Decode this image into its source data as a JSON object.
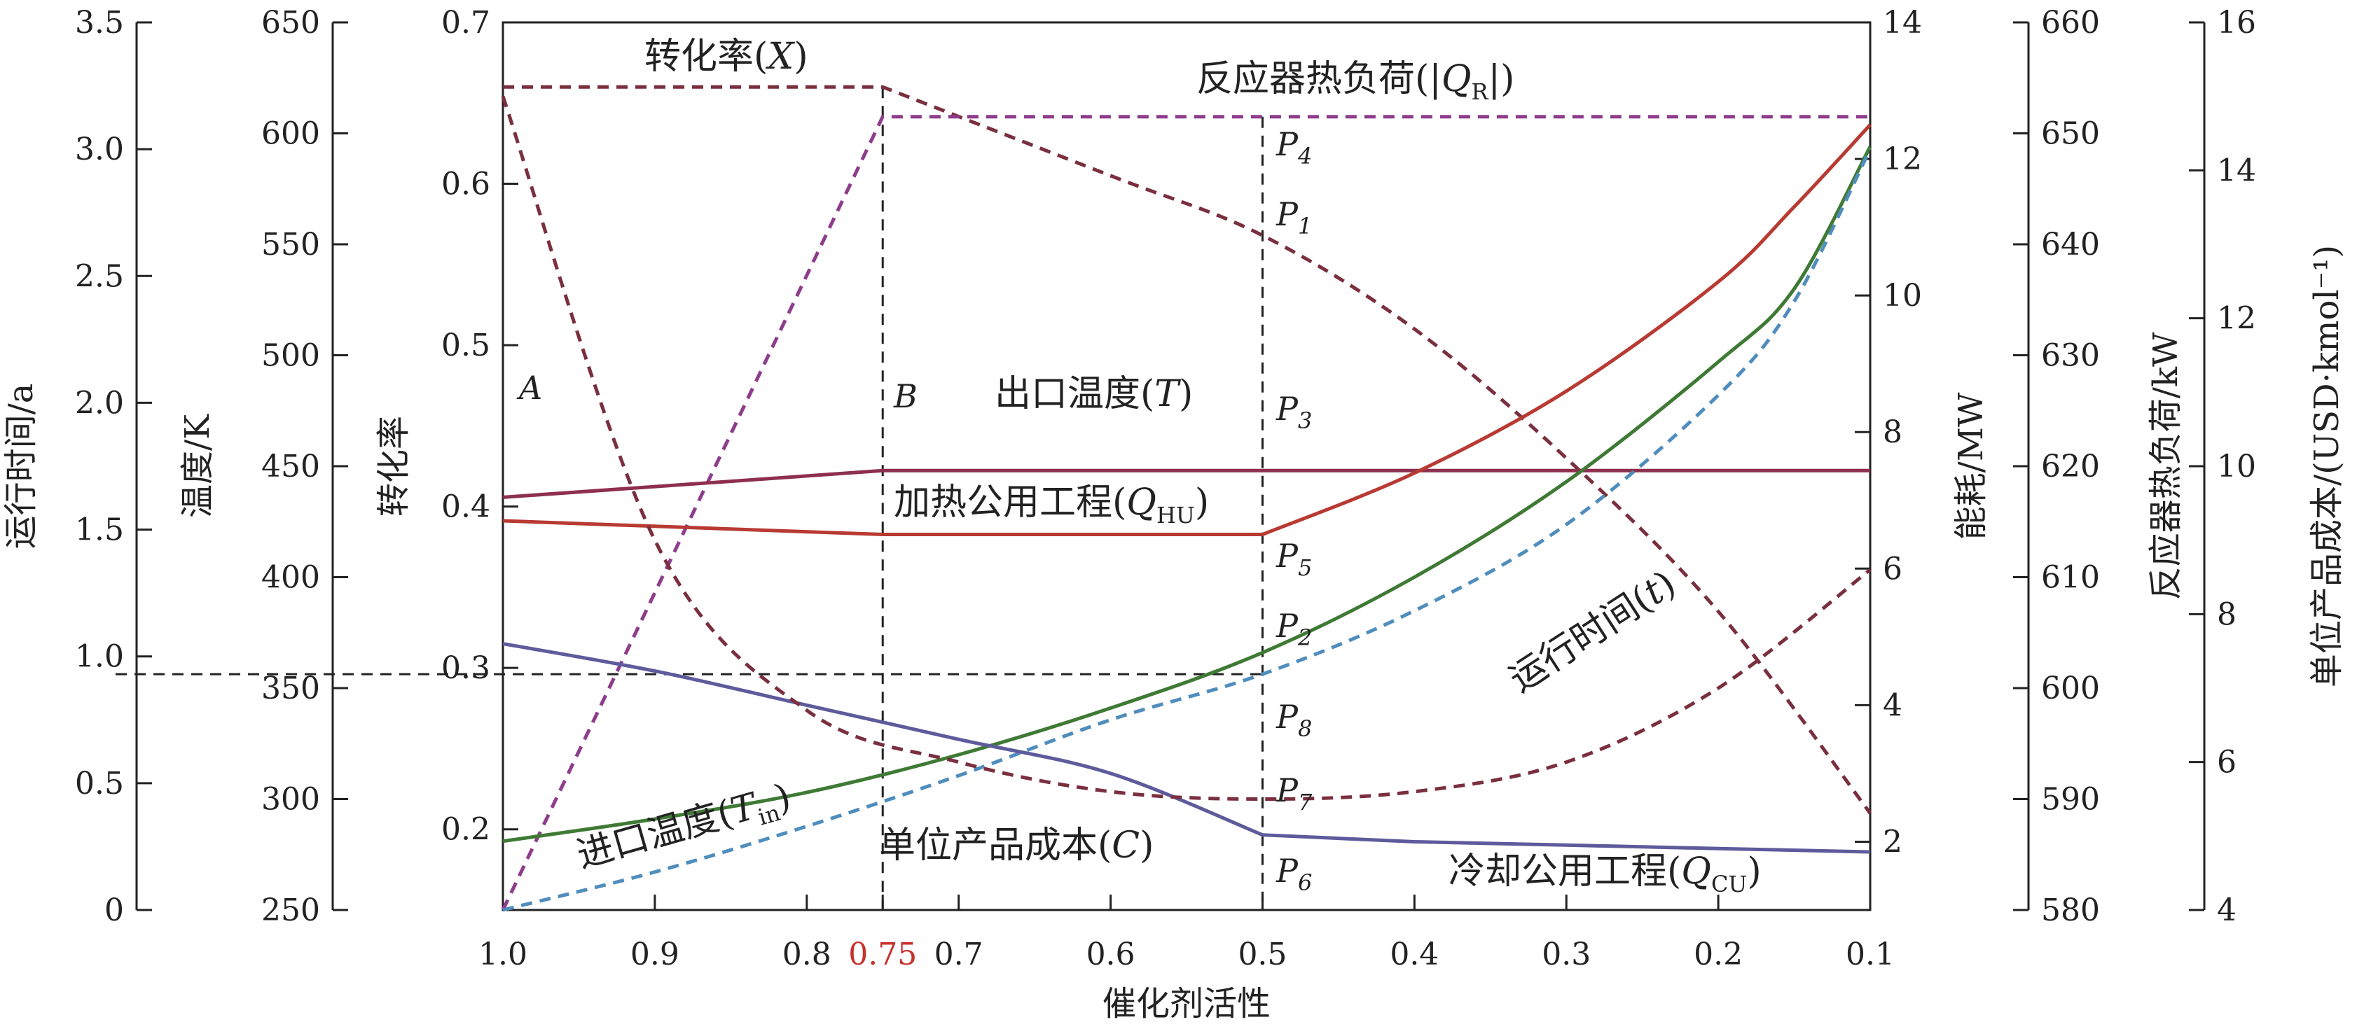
{
  "chart_data": {
    "type": "line",
    "xlabel": "催化剂活性",
    "x_ticks": [
      "1.0",
      "0.9",
      "0.8",
      "0.7",
      "0.6",
      "0.5",
      "0.4",
      "0.3",
      "0.2",
      "0.1"
    ],
    "x_highlight": {
      "value": 0.75,
      "label": "0.75",
      "color": "#c8302c"
    },
    "xlim": [
      1.0,
      0.1
    ],
    "axes": [
      {
        "id": "time",
        "label": "运行时间/a",
        "min": 0,
        "max": 3.5,
        "ticks": [
          "0",
          "0.5",
          "1.0",
          "1.5",
          "2.0",
          "2.5",
          "3.0",
          "3.5"
        ]
      },
      {
        "id": "temp",
        "label": "温度/K",
        "min": 250,
        "max": 650,
        "ticks": [
          "250",
          "300",
          "350",
          "400",
          "450",
          "500",
          "550",
          "600",
          "650"
        ]
      },
      {
        "id": "conv",
        "label": "转化率",
        "min": 0.15,
        "max": 0.7,
        "ticks": [
          "0.2",
          "0.3",
          "0.4",
          "0.5",
          "0.6",
          "0.7"
        ]
      },
      {
        "id": "energy",
        "label": "能耗/MW",
        "min": 1,
        "max": 14,
        "ticks": [
          "2",
          "4",
          "6",
          "8",
          "10",
          "12",
          "14"
        ]
      },
      {
        "id": "duty",
        "label": "反应器热负荷/kW",
        "min": 580,
        "max": 660,
        "ticks": [
          "580",
          "590",
          "600",
          "610",
          "620",
          "630",
          "640",
          "650",
          "660"
        ]
      },
      {
        "id": "cost",
        "label": "单位产品成本/(USD·kmol⁻¹)",
        "min": 4,
        "max": 16,
        "ticks": [
          "4",
          "6",
          "8",
          "10",
          "12",
          "14",
          "16"
        ]
      }
    ],
    "series": [
      {
        "name": "转化率(X)",
        "axis": "conv",
        "style": "dashed",
        "color": "#7a2f3e",
        "x": [
          1.0,
          0.75,
          0.6,
          0.5,
          0.4,
          0.3,
          0.2,
          0.1
        ],
        "y": [
          0.66,
          0.66,
          0.605,
          0.568,
          0.51,
          0.43,
          0.335,
          0.21
        ]
      },
      {
        "name": "反应器热负荷(|QR|)",
        "axis": "duty",
        "style": "dashed",
        "color": "#8e3c8c",
        "x": [
          1.0,
          0.75,
          0.1
        ],
        "y": [
          580,
          651.5,
          651.5
        ]
      },
      {
        "name": "出口温度(T)",
        "axis": "temp",
        "style": "solid",
        "color": "#8e2f4f",
        "x": [
          1.0,
          0.75,
          0.5,
          0.1
        ],
        "y": [
          436,
          448,
          448,
          448
        ]
      },
      {
        "name": "加热公用工程(QHU)",
        "axis": "energy",
        "style": "solid",
        "color": "#b83a32",
        "x": [
          1.0,
          0.75,
          0.5,
          0.4,
          0.3,
          0.2,
          0.15,
          0.1
        ],
        "y": [
          6.7,
          6.5,
          6.5,
          7.4,
          8.6,
          10.2,
          11.3,
          12.5
        ]
      },
      {
        "name": "进口温度(Tin)",
        "axis": "temp",
        "style": "solid",
        "color": "#3f7a35",
        "x": [
          1.0,
          0.9,
          0.8,
          0.7,
          0.6,
          0.5,
          0.4,
          0.3,
          0.2,
          0.15,
          0.1
        ],
        "y": [
          281,
          291,
          303,
          320,
          341,
          366,
          400,
          443,
          497,
          530,
          594
        ]
      },
      {
        "name": "运行时间(t)",
        "axis": "time",
        "style": "dashed",
        "color": "#4f8dbd",
        "x": [
          1.0,
          0.9,
          0.8,
          0.7,
          0.6,
          0.5,
          0.4,
          0.3,
          0.2,
          0.15,
          0.1
        ],
        "y": [
          0.0,
          0.15,
          0.33,
          0.53,
          0.75,
          0.93,
          1.18,
          1.52,
          2.03,
          2.4,
          3.0
        ]
      },
      {
        "name": "冷却公用工程(QCU)",
        "axis": "energy",
        "style": "solid",
        "color": "#5d5b9c",
        "x": [
          1.0,
          0.9,
          0.8,
          0.7,
          0.6,
          0.5,
          0.4,
          0.3,
          0.2,
          0.1
        ],
        "y": [
          4.9,
          4.5,
          4.0,
          3.5,
          3.0,
          2.1,
          2.0,
          1.95,
          1.9,
          1.85
        ]
      },
      {
        "name": "单位产品成本(C)",
        "axis": "cost",
        "style": "dashed",
        "color": "#7a2f3e",
        "x": [
          1.0,
          0.9,
          0.8,
          0.7,
          0.6,
          0.5,
          0.4,
          0.3,
          0.2,
          0.1
        ],
        "y": [
          15.0,
          9.0,
          6.7,
          6.0,
          5.6,
          5.5,
          5.6,
          6.0,
          7.0,
          8.6
        ]
      }
    ],
    "annotations": {
      "conversion": "转化率(X)",
      "reactor_duty": "反应器热负荷(|QR|)",
      "outlet_temp": "出口温度(T)",
      "heating_utility": "加热公用工程(QHU)",
      "inlet_temp": "进口温度(Tin)",
      "run_time": "运行时间(t)",
      "cooling_utility": "冷却公用工程(QCU)",
      "unit_cost": "单位产品成本(C)",
      "point_a": "A",
      "point_b": "B",
      "points_p": [
        "P1",
        "P2",
        "P3",
        "P4",
        "P5",
        "P6",
        "P7",
        "P8"
      ]
    }
  }
}
